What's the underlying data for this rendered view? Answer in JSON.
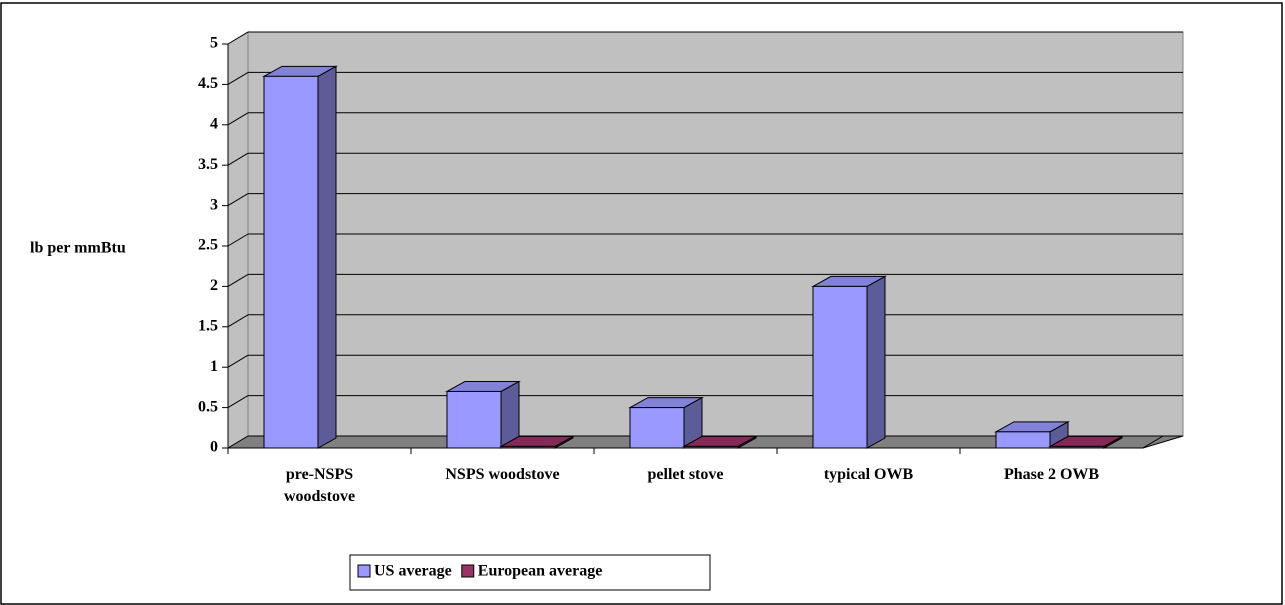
{
  "chart_data": {
    "type": "bar3d",
    "y_label": "lb per mmBtu",
    "categories": [
      "pre-NSPS woodstove",
      "NSPS woodstove",
      "pellet stove",
      "typical OWB",
      "Phase 2 OWB"
    ],
    "series": [
      {
        "name": "US average",
        "color": "#9999ff",
        "values": [
          4.6,
          0.7,
          0.5,
          2.0,
          0.2
        ]
      },
      {
        "name": "European average",
        "color": "#993366",
        "values": [
          null,
          0.02,
          0.02,
          null,
          0.02
        ]
      }
    ],
    "ylim": [
      0,
      5
    ],
    "yticks": [
      0,
      0.5,
      1,
      1.5,
      2,
      2.5,
      3,
      3.5,
      4,
      4.5,
      5
    ],
    "grid": true
  }
}
